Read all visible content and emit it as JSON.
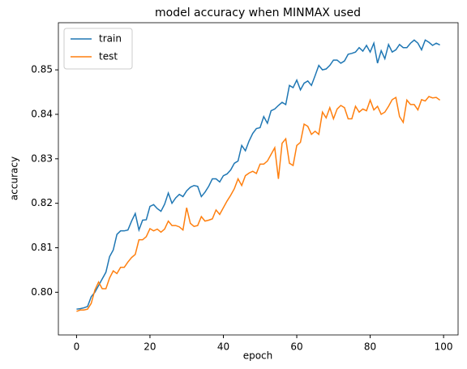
{
  "chart_data": {
    "type": "line",
    "title": "model accuracy when MINMAX used",
    "xlabel": "epoch",
    "ylabel": "accuracy",
    "x": [
      0,
      1,
      2,
      3,
      4,
      5,
      6,
      7,
      8,
      9,
      10,
      11,
      12,
      13,
      14,
      15,
      16,
      17,
      18,
      19,
      20,
      21,
      22,
      23,
      24,
      25,
      26,
      27,
      28,
      29,
      30,
      31,
      32,
      33,
      34,
      35,
      36,
      37,
      38,
      39,
      40,
      41,
      42,
      43,
      44,
      45,
      46,
      47,
      48,
      49,
      50,
      51,
      52,
      53,
      54,
      55,
      56,
      57,
      58,
      59,
      60,
      61,
      62,
      63,
      64,
      65,
      66,
      67,
      68,
      69,
      70,
      71,
      72,
      73,
      74,
      75,
      76,
      77,
      78,
      79,
      80,
      81,
      82,
      83,
      84,
      85,
      86,
      87,
      88,
      89,
      90,
      91,
      92,
      93,
      94,
      95,
      96,
      97,
      98,
      99
    ],
    "series": [
      {
        "name": "train",
        "color": "#1f77b4",
        "values": [
          0.7962,
          0.7963,
          0.7965,
          0.7968,
          0.799,
          0.8,
          0.8015,
          0.803,
          0.8045,
          0.808,
          0.8095,
          0.813,
          0.8138,
          0.8138,
          0.814,
          0.816,
          0.8177,
          0.814,
          0.8162,
          0.8163,
          0.8193,
          0.8197,
          0.8188,
          0.8182,
          0.8198,
          0.8223,
          0.82,
          0.8212,
          0.822,
          0.8215,
          0.8228,
          0.8236,
          0.824,
          0.8238,
          0.8215,
          0.8225,
          0.8238,
          0.8255,
          0.8255,
          0.8248,
          0.8262,
          0.8266,
          0.8275,
          0.829,
          0.8295,
          0.833,
          0.8318,
          0.834,
          0.8357,
          0.8368,
          0.837,
          0.8395,
          0.838,
          0.8408,
          0.8412,
          0.842,
          0.8427,
          0.8422,
          0.8465,
          0.846,
          0.8477,
          0.8455,
          0.847,
          0.8475,
          0.8465,
          0.8487,
          0.851,
          0.85,
          0.8502,
          0.851,
          0.8522,
          0.8522,
          0.8515,
          0.852,
          0.8535,
          0.8537,
          0.854,
          0.855,
          0.8542,
          0.8555,
          0.854,
          0.856,
          0.8515,
          0.8543,
          0.8525,
          0.8557,
          0.854,
          0.8545,
          0.8557,
          0.855,
          0.855,
          0.856,
          0.8567,
          0.856,
          0.8545,
          0.8567,
          0.8562,
          0.8555,
          0.856,
          0.8556
        ]
      },
      {
        "name": "test",
        "color": "#ff7f0e",
        "values": [
          0.7957,
          0.796,
          0.796,
          0.7962,
          0.7975,
          0.8005,
          0.8023,
          0.8008,
          0.8008,
          0.8032,
          0.8048,
          0.8042,
          0.8056,
          0.8056,
          0.8068,
          0.8078,
          0.8085,
          0.8118,
          0.8118,
          0.8125,
          0.8143,
          0.8138,
          0.8142,
          0.8135,
          0.8142,
          0.816,
          0.815,
          0.815,
          0.8147,
          0.814,
          0.819,
          0.8155,
          0.8148,
          0.815,
          0.817,
          0.816,
          0.8162,
          0.8165,
          0.8185,
          0.8175,
          0.819,
          0.8205,
          0.8218,
          0.8233,
          0.8255,
          0.824,
          0.8262,
          0.8268,
          0.8272,
          0.8267,
          0.8288,
          0.8288,
          0.8295,
          0.831,
          0.8325,
          0.8255,
          0.8335,
          0.8345,
          0.829,
          0.8285,
          0.833,
          0.8337,
          0.8378,
          0.8373,
          0.8355,
          0.8362,
          0.8355,
          0.8405,
          0.8392,
          0.8415,
          0.839,
          0.8412,
          0.842,
          0.8415,
          0.839,
          0.839,
          0.8418,
          0.8405,
          0.8412,
          0.8408,
          0.8432,
          0.841,
          0.8418,
          0.84,
          0.8405,
          0.8418,
          0.8433,
          0.8438,
          0.8395,
          0.8382,
          0.8432,
          0.8422,
          0.8422,
          0.841,
          0.8433,
          0.843,
          0.844,
          0.8437,
          0.8438,
          0.8432
        ]
      }
    ],
    "xlim": [
      -4.95,
      103.95
    ],
    "xticks": [
      0,
      20,
      40,
      60,
      80,
      100
    ],
    "ylim": [
      0.7904,
      0.8606
    ],
    "yticks": [
      {
        "value": 0.8,
        "label": "0.80"
      },
      0.81,
      0.82,
      0.83,
      0.84,
      0.85
    ],
    "legend": "upper left"
  }
}
